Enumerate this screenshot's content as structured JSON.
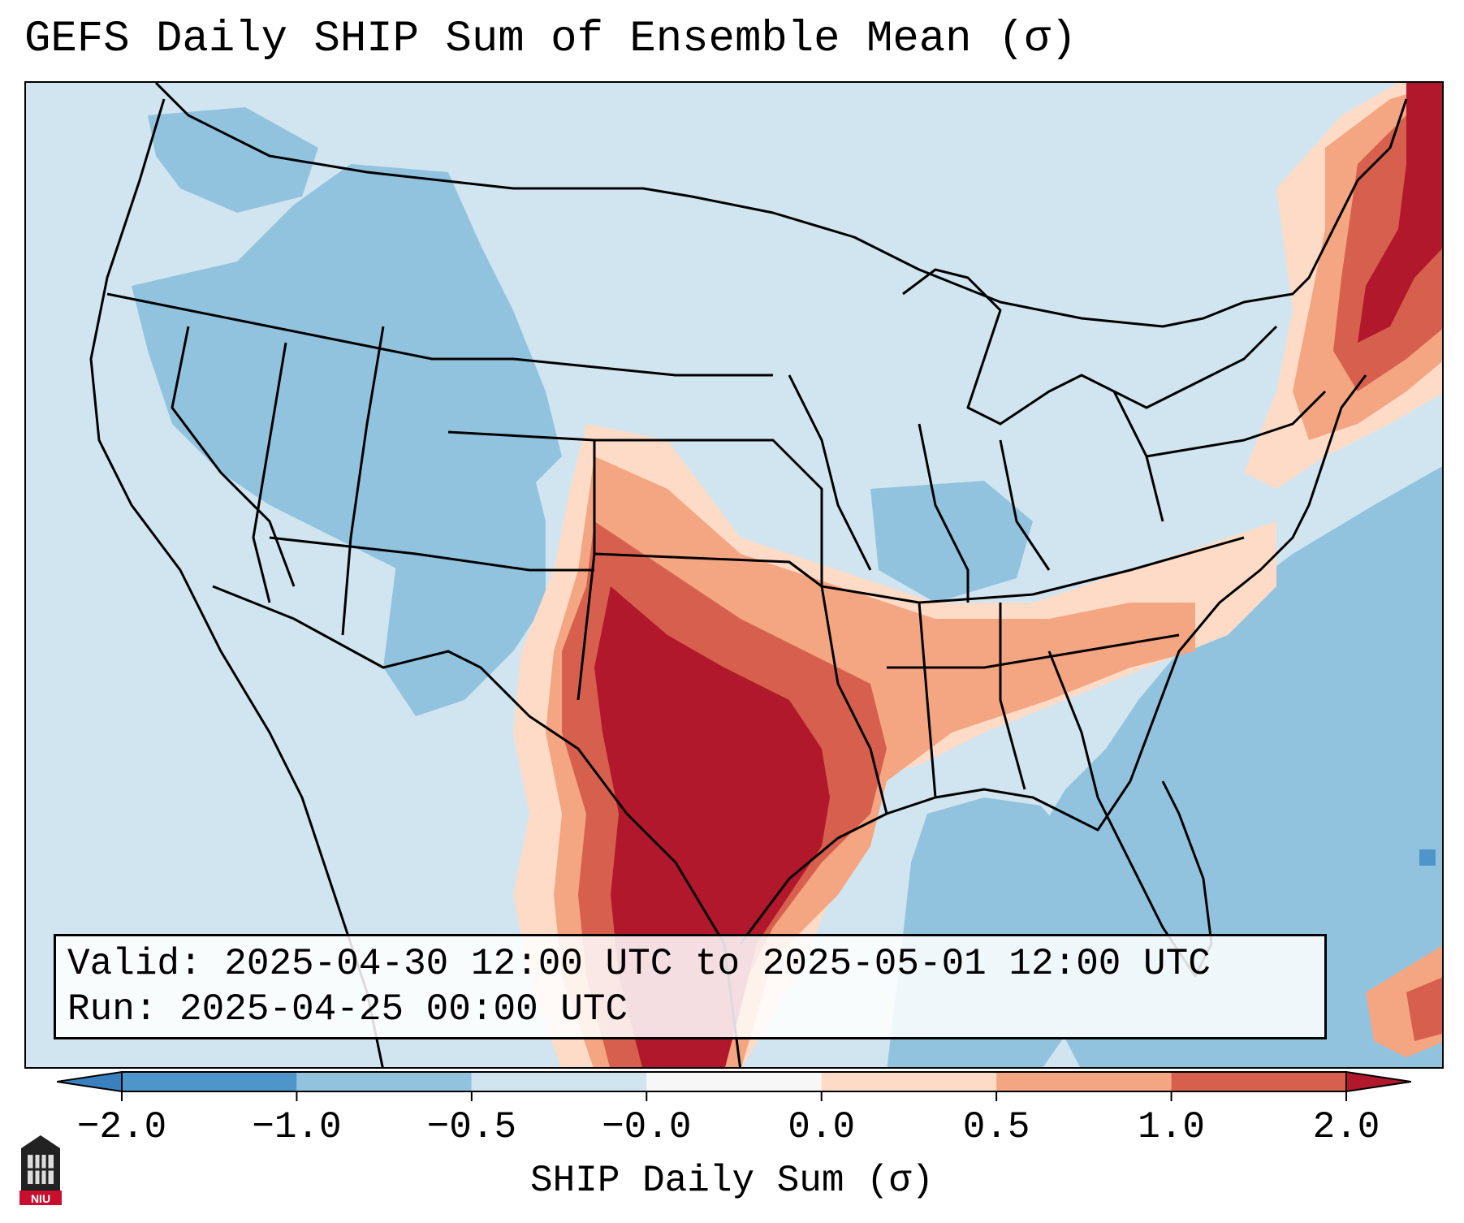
{
  "title": "GEFS Daily SHIP Sum of Ensemble Mean (σ)",
  "valid_line": "Valid: 2025-04-30 12:00 UTC to 2025-05-01 12:00 UTC",
  "run_line": "Run:   2025-04-25 00:00 UTC",
  "colorbar": {
    "label": "SHIP Daily Sum (σ)",
    "ticks": [
      "−2.0",
      "−1.0",
      "−0.5",
      "−0.0",
      "0.0",
      "0.5",
      "1.0",
      "2.0"
    ],
    "bins": [
      {
        "range": "< -2.0",
        "color": "#3a7fbe"
      },
      {
        "range": "-2.0 to -1.0",
        "color": "#4e96c9"
      },
      {
        "range": "-1.0 to -0.5",
        "color": "#92c3de"
      },
      {
        "range": "-0.5 to -0.0",
        "color": "#d1e5f0"
      },
      {
        "range": "-0.0 to 0.0",
        "color": "#f7f7f7"
      },
      {
        "range": "0.0 to 0.5",
        "color": "#fddbc7"
      },
      {
        "range": "0.5 to 1.0",
        "color": "#f4a582"
      },
      {
        "range": "1.0 to 2.0",
        "color": "#d6604d"
      },
      {
        "range": "> 2.0",
        "color": "#b2182b"
      }
    ]
  },
  "map": {
    "region": "Contiguous United States",
    "highlights": [
      {
        "area": "Texas / southern Plains",
        "category": "> 2.0"
      },
      {
        "area": "Oklahoma / Arkansas / Lower Mississippi",
        "category": "1.0 to 2.0"
      },
      {
        "area": "Tennessee Valley / Carolinas",
        "category": "0.0 to 1.0"
      },
      {
        "area": "New England",
        "category": "> 2.0"
      },
      {
        "area": "Northwest / Rockies",
        "category": "-1.0 to -0.5"
      },
      {
        "area": "Atlantic / Gulf waters",
        "category": "-1.0 to -0.5"
      }
    ]
  },
  "logo": {
    "text": "NIU"
  }
}
